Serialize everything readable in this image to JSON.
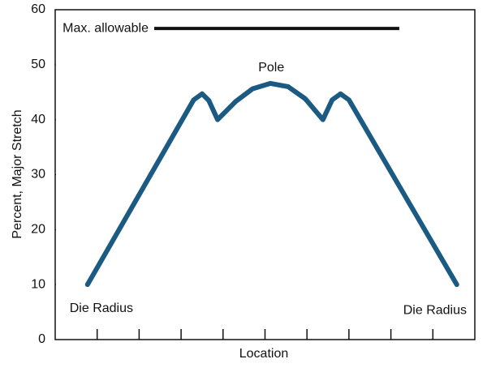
{
  "chart_data": {
    "type": "line",
    "ylabel": "Percent, Major Stretch",
    "xlabel": "Location",
    "x": [
      0.77,
      3.3,
      3.5,
      3.66,
      3.87,
      4.3,
      4.7,
      5.13,
      5.55,
      5.96,
      6.38,
      6.6,
      6.8,
      7.0,
      9.57
    ],
    "series": [
      {
        "color": "#1b5a82",
        "values": [
          10,
          43.6,
          44.7,
          43.5,
          40,
          43.3,
          45.6,
          46.6,
          46.0,
          43.8,
          40,
          43.6,
          44.7,
          43.6,
          10
        ]
      }
    ],
    "xlim": [
      0,
      10
    ],
    "xticks": [
      1,
      2,
      3,
      4,
      5,
      6,
      7,
      8,
      9
    ],
    "ylim": [
      0,
      60
    ],
    "yticks": [
      0,
      10,
      20,
      30,
      40,
      50,
      60
    ],
    "reference_line": {
      "label": "Max. allowable",
      "y": 56.6,
      "x": [
        2.36,
        8.2
      ],
      "color": "#111111"
    },
    "annotations": [
      {
        "text": "Pole",
        "x": 5.15,
        "y": 49.4
      },
      {
        "text": "Die Radius",
        "x": 1.1,
        "y": 5.6
      },
      {
        "text": "Die Radius",
        "x": 9.05,
        "y": 5.3
      }
    ]
  }
}
